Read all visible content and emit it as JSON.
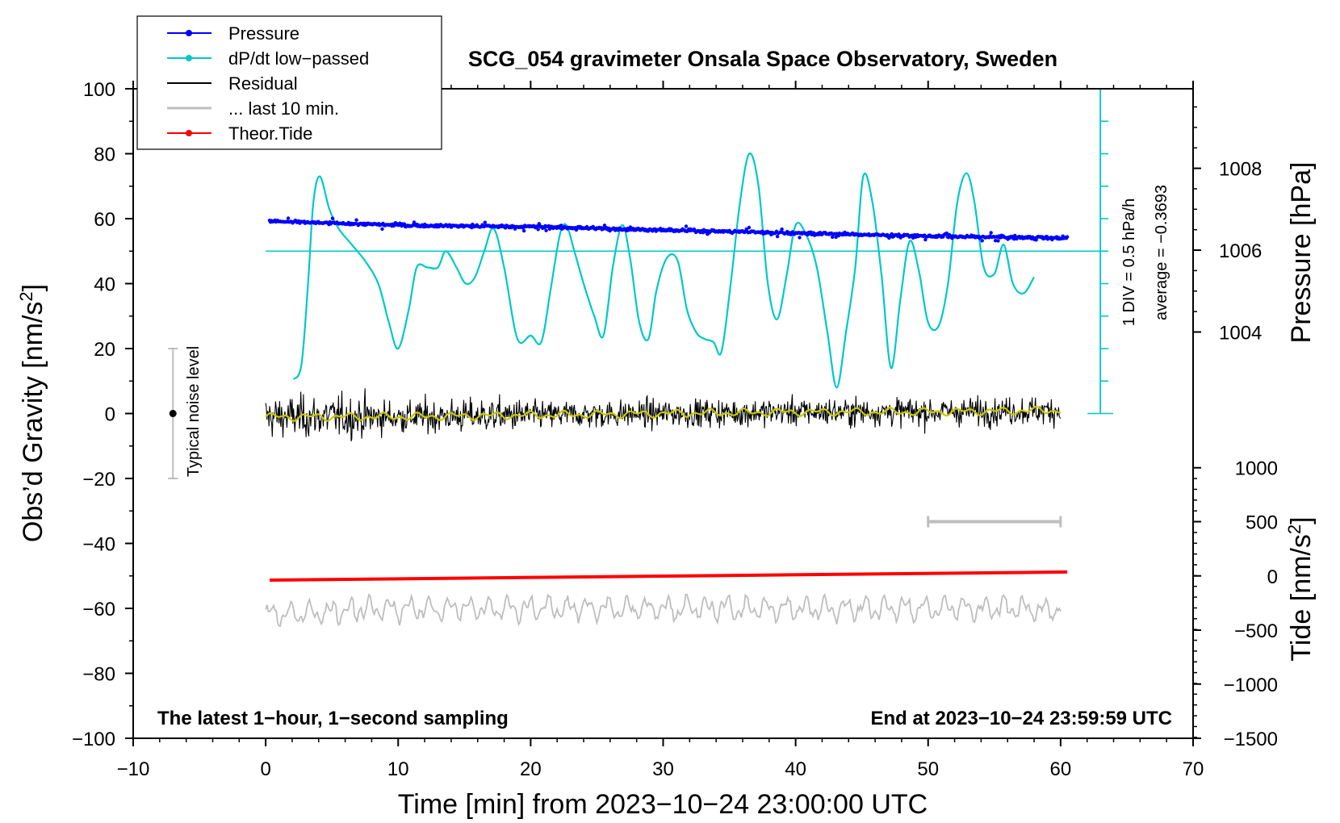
{
  "chart_data": {
    "type": "line",
    "title": "SCG_054 gravimeter Onsala Space Observatory, Sweden",
    "xlabel": "Time [min] from 2023−10−24 23:00:00 UTC",
    "ylabel": "Obs’d Gravity [nm/s",
    "ylabel_sup": "2",
    "ylabel_end": "]",
    "pressure_label": "Pressure [hPa]",
    "tide_label": "Tide [nm/s",
    "tide_label_sup": "2",
    "tide_label_end": "]",
    "xlim": [
      -10,
      70
    ],
    "ylim": [
      -100,
      100
    ],
    "x_ticks": [
      -10,
      0,
      10,
      20,
      30,
      40,
      50,
      60,
      70
    ],
    "x_tick_labels": [
      "−10",
      "0",
      "10",
      "20",
      "30",
      "40",
      "50",
      "60",
      "70"
    ],
    "y_ticks": [
      100,
      80,
      60,
      40,
      20,
      0,
      -20,
      -40,
      -60,
      -80,
      -100
    ],
    "y_tick_labels": [
      "100",
      "80",
      "60",
      "40",
      "20",
      "0",
      "−20",
      "−40",
      "−60",
      "−80",
      "−100"
    ],
    "pressure_axis": {
      "ticks": [
        1008,
        1006,
        1004
      ],
      "tick_labels": [
        "1008",
        "1006",
        "1004"
      ],
      "gravity_equiv": [
        75.5,
        50.3,
        25.1
      ]
    },
    "tide_axis": {
      "ticks": [
        1000,
        500,
        0,
        -500,
        -1000,
        -1500
      ],
      "tick_labels": [
        "1000",
        "500",
        "0",
        "−500",
        "−1000",
        "−1500"
      ],
      "gravity_equiv": [
        -16.7,
        -33.3,
        -50,
        -66.7,
        -83.3,
        -100
      ]
    },
    "legend": [
      {
        "name": "Pressure",
        "color": "#0000ff",
        "marker": true
      },
      {
        "name": "dP/dt low−passed",
        "color": "#00c8c8",
        "marker": true
      },
      {
        "name": "Residual",
        "color": "#000000",
        "marker": false
      },
      {
        "name": "... last 10 min.",
        "color": "#bebebe",
        "marker": false
      },
      {
        "name": "Theor.Tide",
        "color": "#ff0000",
        "marker": true
      }
    ],
    "annotations": {
      "noise": "Typical noise level",
      "div": "1 DIV = 0.5 hPa/h",
      "average": "average = −0.3693",
      "bottom_left": "The latest 1−hour, 1−second sampling",
      "bottom_right": "End at 2023−10−24 23:59:59 UTC"
    },
    "noise_level": {
      "x": -7,
      "center": 0,
      "low": -20,
      "high": 20
    },
    "dpdt_baseline": 50,
    "dpdt_scale": {
      "ymin": 0,
      "ymax": 100,
      "divisions": 10
    },
    "last10_range": [
      50,
      60
    ],
    "last10_y": -33.3,
    "series": [
      {
        "name": "Pressure",
        "color": "#0000ff",
        "x": [
          0.3,
          10,
          20,
          30,
          40,
          50,
          60.5
        ],
        "values": [
          59.2,
          58.0,
          57.5,
          56.5,
          55.6,
          54.6,
          54.0
        ]
      },
      {
        "name": "dP/dt low−passed",
        "color": "#00c8c8",
        "x": [
          2.1,
          2.7,
          3.2,
          3.6,
          4.1,
          4.8,
          5.5,
          6.5,
          7.5,
          8.5,
          9.3,
          10.0,
          10.8,
          11.4,
          12.2,
          13.0,
          13.6,
          14.4,
          15.1,
          15.8,
          16.5,
          17.2,
          18.0,
          19.0,
          20.0,
          20.8,
          21.5,
          22.2,
          22.7,
          23.3,
          24.0,
          24.8,
          25.5,
          26.2,
          26.9,
          27.5,
          28.2,
          28.9,
          29.5,
          30.3,
          31.1,
          31.8,
          32.5,
          33.1,
          33.8,
          34.4,
          35.1,
          35.8,
          36.5,
          37.2,
          37.9,
          38.6,
          39.3,
          40.0,
          40.8,
          41.6,
          42.4,
          43.1,
          43.8,
          44.5,
          45.1,
          45.8,
          46.5,
          47.2,
          47.9,
          48.6,
          49.3,
          50.0,
          50.8,
          51.5,
          52.2,
          52.9,
          53.5,
          54.2,
          55.0,
          55.7,
          56.4,
          57.2,
          58.0
        ],
        "values": [
          10.5,
          15,
          40,
          65,
          73,
          63,
          57,
          52,
          47,
          40,
          28,
          20,
          32,
          45,
          45,
          45,
          50,
          45,
          40,
          42,
          50,
          57,
          45,
          23,
          24,
          22,
          38,
          55,
          58,
          50,
          40,
          30,
          24,
          45,
          58,
          48,
          28,
          23,
          38,
          48,
          47,
          32,
          25,
          23,
          22,
          19,
          40,
          65,
          80,
          70,
          40,
          29,
          42,
          58,
          55,
          45,
          25,
          8,
          25,
          45,
          73,
          65,
          42,
          14,
          35,
          53,
          44,
          28,
          27,
          40,
          65,
          74,
          65,
          45,
          43,
          52,
          40,
          37,
          42
        ]
      },
      {
        "name": "Residual",
        "color": "#000000",
        "x": [
          0,
          10,
          20,
          30,
          40,
          50,
          60
        ],
        "values": [
          -1,
          -1,
          -0.5,
          0,
          0.5,
          0.5,
          1
        ]
      },
      {
        "name": "... last 10 min.",
        "color": "#bebebe",
        "x": [
          0,
          10,
          20,
          30,
          40,
          50,
          60
        ],
        "values": [
          -62,
          -60,
          -60,
          -60,
          -60,
          -60,
          -60
        ]
      },
      {
        "name": "Theor.Tide",
        "color": "#ff0000",
        "x": [
          0.3,
          60.5
        ],
        "values": [
          -51.3,
          -48.8
        ]
      }
    ]
  }
}
